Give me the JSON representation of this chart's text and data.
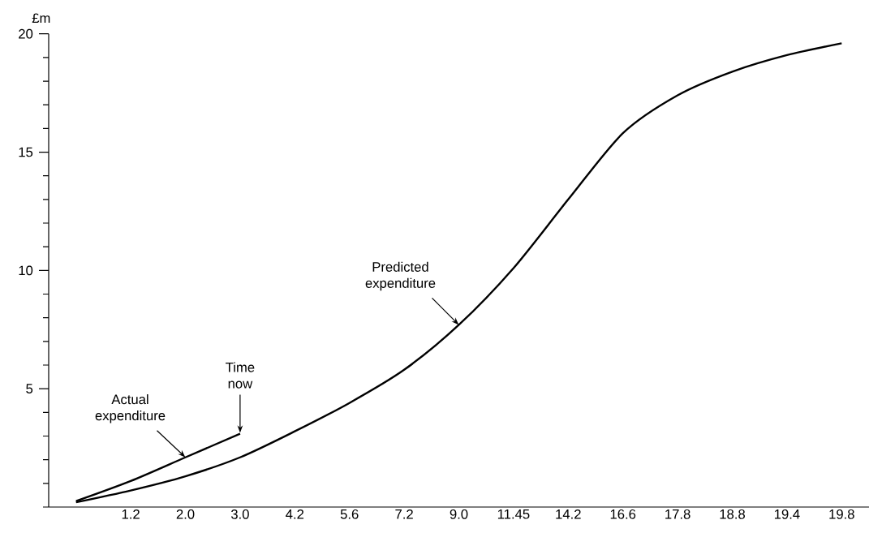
{
  "chart_data": {
    "type": "line",
    "ylabel": "£m",
    "categories": [
      null,
      "1.2",
      "2.0",
      "3.0",
      "4.2",
      "5.6",
      "7.2",
      "9.0",
      "11.45",
      "14.2",
      "16.6",
      "17.8",
      "18.8",
      "19.4",
      "19.8"
    ],
    "ylim": [
      0,
      20
    ],
    "yticks": [
      {
        "value": 0,
        "label": null
      },
      {
        "value": 1,
        "label": null
      },
      {
        "value": 2,
        "label": null
      },
      {
        "value": 3,
        "label": null
      },
      {
        "value": 4,
        "label": null
      },
      5,
      {
        "value": 6,
        "label": null
      },
      {
        "value": 7,
        "label": null
      },
      {
        "value": 8,
        "label": null
      },
      {
        "value": 9,
        "label": null
      },
      10,
      {
        "value": 11,
        "label": null
      },
      {
        "value": 12,
        "label": null
      },
      {
        "value": 13,
        "label": null
      },
      {
        "value": 14,
        "label": null
      },
      15,
      {
        "value": 16,
        "label": null
      },
      {
        "value": 17,
        "label": null
      },
      {
        "value": 18,
        "label": null
      },
      {
        "value": 19,
        "label": null
      },
      20
    ],
    "series": [
      {
        "color": "#000000",
        "values": [
          0.2,
          0.7,
          1.3,
          2.1,
          3.2,
          4.4,
          5.8,
          7.7,
          10.1,
          13.0,
          15.8,
          17.4,
          18.4,
          19.1,
          19.6
        ]
      },
      {
        "color": "#000000",
        "values": [
          0.25,
          1.1,
          2.1,
          3.1,
          null,
          null,
          null,
          null,
          null,
          null,
          null,
          null,
          null,
          null,
          null
        ]
      }
    ],
    "annotations": [
      {
        "text": "Actual expenditure",
        "x": "2.0",
        "y": 2.1
      },
      {
        "text": "Time now",
        "x": "3.0",
        "y": 3.1
      },
      {
        "text": "Predicted expenditure",
        "x": "9.0",
        "y": 7.7
      }
    ]
  }
}
